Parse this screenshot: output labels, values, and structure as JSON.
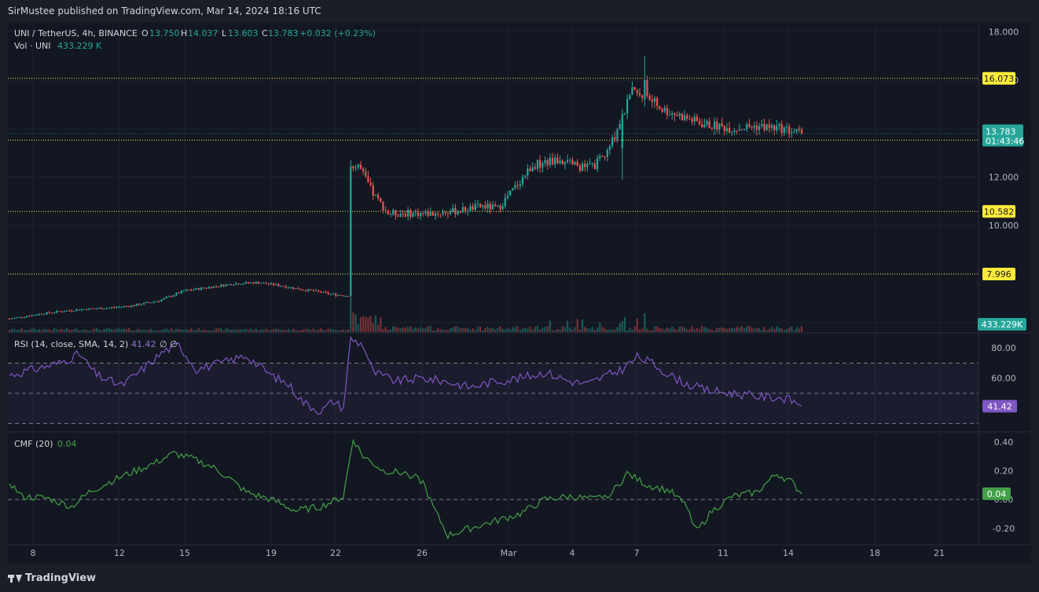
{
  "header": {
    "published": "SirMustee published on TradingView.com, Mar 14, 2024 18:16 UTC"
  },
  "footer": {
    "brand": "TradingView"
  },
  "colors": {
    "bg": "#131722",
    "up": "#26a69a",
    "down": "#ef5350",
    "level": "#ffeb3b",
    "rsi": "#7e57c2",
    "cmf": "#43a047",
    "grid": "#1e222d",
    "text": "#b2b5be"
  },
  "legend": {
    "symbol": "UNI / TetherUS, 4h, BINANCE",
    "o_label": "O",
    "o_value": "13.750",
    "h_label": "H",
    "h_value": "14.037",
    "l_label": "L",
    "l_value": "13.603",
    "c_label": "C",
    "c_value": "13.783",
    "change": "+0.032 (+0.23%)",
    "vol_label": "Vol · UNI",
    "vol_value": "433.229 K"
  },
  "rsi_legend": {
    "label": "RSI (14, close, SMA, 14, 2)",
    "value": "41.42",
    "extra": "∅ ∅"
  },
  "cmf_legend": {
    "label": "CMF (20)",
    "value": "0.04"
  },
  "chart_data": [
    {
      "type": "candlestick",
      "title": "UNI / TetherUS, 4h, BINANCE",
      "y_ticks": [
        "18.000",
        "16.000",
        "14.000",
        "12.000",
        "10.000",
        "8.000",
        "6.000"
      ],
      "ylim": [
        5.6,
        18.4
      ],
      "x_ticks": [
        "8",
        "12",
        "15",
        "19",
        "22",
        "26",
        "Mar",
        "4",
        "7",
        "11",
        "14",
        "18",
        "21"
      ],
      "levels": [
        16.073,
        13.522,
        10.582,
        7.996
      ],
      "level_labels": [
        "16.073",
        "13.522",
        "10.582",
        "7.996"
      ],
      "last_price": 13.783,
      "last_price_label": "13.783",
      "countdown": "01:43:46",
      "volume_label": "433.229K",
      "anchors": [
        [
          0,
          6.15
        ],
        [
          6,
          6.25
        ],
        [
          12,
          6.35
        ],
        [
          20,
          6.45
        ],
        [
          30,
          6.55
        ],
        [
          40,
          6.6
        ],
        [
          50,
          6.7
        ],
        [
          60,
          6.9
        ],
        [
          70,
          7.3
        ],
        [
          80,
          7.45
        ],
        [
          90,
          7.6
        ],
        [
          100,
          7.65
        ],
        [
          110,
          7.5
        ],
        [
          115,
          7.4
        ],
        [
          122,
          7.3
        ],
        [
          130,
          7.15
        ],
        [
          136,
          7.1
        ],
        [
          137,
          12.3
        ],
        [
          140,
          12.5
        ],
        [
          146,
          11.3
        ],
        [
          152,
          10.5
        ],
        [
          160,
          10.5
        ],
        [
          170,
          10.5
        ],
        [
          180,
          10.6
        ],
        [
          190,
          10.8
        ],
        [
          196,
          10.7
        ],
        [
          200,
          11.2
        ],
        [
          210,
          12.5
        ],
        [
          220,
          12.7
        ],
        [
          230,
          12.4
        ],
        [
          235,
          12.5
        ],
        [
          240,
          13.0
        ],
        [
          246,
          14.5
        ],
        [
          250,
          15.5
        ],
        [
          256,
          15.3
        ],
        [
          262,
          14.8
        ],
        [
          270,
          14.5
        ],
        [
          278,
          14.2
        ],
        [
          290,
          14.0
        ],
        [
          300,
          14.1
        ],
        [
          310,
          14.0
        ],
        [
          318,
          13.8
        ]
      ],
      "shocks": {
        "137": [
          7.1,
          12.45,
          6.9,
          12.7
        ],
        "246": [
          13.2,
          14.6,
          11.9,
          14.8
        ],
        "255": [
          15.2,
          16.0,
          14.9,
          17.0
        ]
      },
      "n_candles": 319
    },
    {
      "type": "line",
      "title": "RSI (14, close, SMA, 14, 2)",
      "y_ticks": [
        "80.00",
        "60.00"
      ],
      "bands": [
        70,
        50,
        30
      ],
      "ylim": [
        25,
        90
      ],
      "last_value": 41.42,
      "last_label": "41.42",
      "points": [
        [
          0,
          62
        ],
        [
          10,
          66
        ],
        [
          20,
          70
        ],
        [
          28,
          76
        ],
        [
          35,
          62
        ],
        [
          45,
          55
        ],
        [
          55,
          68
        ],
        [
          62,
          78
        ],
        [
          68,
          82
        ],
        [
          75,
          66
        ],
        [
          85,
          70
        ],
        [
          95,
          75
        ],
        [
          105,
          62
        ],
        [
          112,
          56
        ],
        [
          118,
          44
        ],
        [
          125,
          38
        ],
        [
          130,
          45
        ],
        [
          134,
          40
        ],
        [
          137,
          86
        ],
        [
          142,
          82
        ],
        [
          146,
          64
        ],
        [
          155,
          58
        ],
        [
          165,
          60
        ],
        [
          175,
          58
        ],
        [
          185,
          54
        ],
        [
          195,
          58
        ],
        [
          205,
          60
        ],
        [
          215,
          64
        ],
        [
          225,
          58
        ],
        [
          232,
          56
        ],
        [
          240,
          62
        ],
        [
          246,
          66
        ],
        [
          252,
          74
        ],
        [
          258,
          70
        ],
        [
          265,
          62
        ],
        [
          272,
          56
        ],
        [
          280,
          52
        ],
        [
          290,
          50
        ],
        [
          300,
          48
        ],
        [
          310,
          47
        ],
        [
          318,
          43
        ]
      ]
    },
    {
      "type": "line",
      "title": "CMF (20)",
      "y_ticks": [
        "0.40",
        "0.20",
        "0.00",
        "-0.20"
      ],
      "zero_line": 0,
      "ylim": [
        -0.31,
        0.47
      ],
      "last_value": 0.04,
      "last_label": "0.04",
      "points": [
        [
          0,
          0.12
        ],
        [
          5,
          0.02
        ],
        [
          15,
          0.01
        ],
        [
          25,
          -0.05
        ],
        [
          32,
          0.05
        ],
        [
          40,
          0.12
        ],
        [
          48,
          0.18
        ],
        [
          58,
          0.25
        ],
        [
          66,
          0.32
        ],
        [
          74,
          0.28
        ],
        [
          82,
          0.22
        ],
        [
          88,
          0.15
        ],
        [
          95,
          0.05
        ],
        [
          105,
          0.0
        ],
        [
          115,
          -0.08
        ],
        [
          125,
          -0.05
        ],
        [
          134,
          0.02
        ],
        [
          138,
          0.42
        ],
        [
          142,
          0.3
        ],
        [
          150,
          0.2
        ],
        [
          160,
          0.18
        ],
        [
          166,
          0.12
        ],
        [
          170,
          -0.05
        ],
        [
          176,
          -0.25
        ],
        [
          185,
          -0.2
        ],
        [
          195,
          -0.15
        ],
        [
          205,
          -0.1
        ],
        [
          215,
          0.0
        ],
        [
          225,
          0.02
        ],
        [
          235,
          0.0
        ],
        [
          242,
          0.05
        ],
        [
          248,
          0.18
        ],
        [
          256,
          0.1
        ],
        [
          265,
          0.06
        ],
        [
          272,
          -0.05
        ],
        [
          276,
          -0.22
        ],
        [
          282,
          -0.08
        ],
        [
          290,
          0.02
        ],
        [
          300,
          0.05
        ],
        [
          308,
          0.18
        ],
        [
          314,
          0.12
        ],
        [
          318,
          0.04
        ]
      ]
    }
  ]
}
